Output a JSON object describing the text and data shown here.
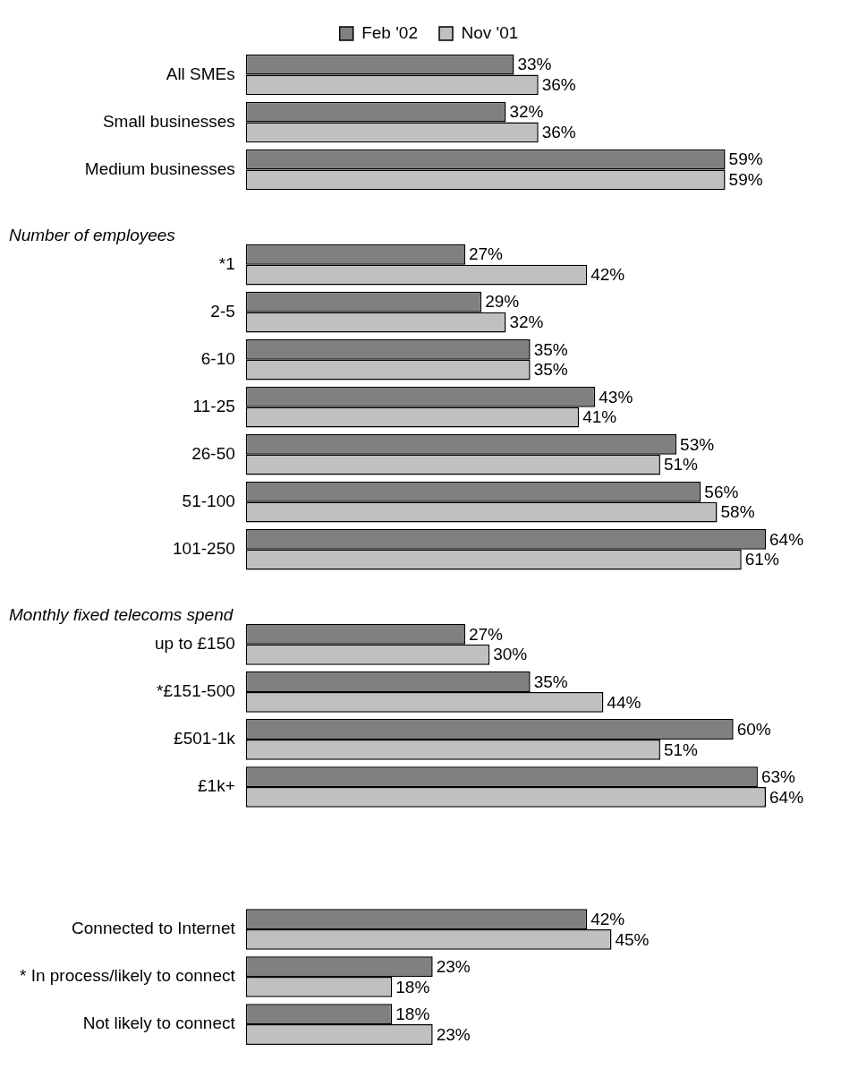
{
  "chart_data": {
    "type": "bar",
    "orientation": "horizontal",
    "legend": "top",
    "tick_labels": "y",
    "data_labels": true,
    "categories": [
      "All SMEs",
      "Small businesses",
      "Medium businesses",
      null,
      "*1",
      "2-5",
      "6-10",
      "11-25",
      "26-50",
      "51-100",
      "101-250",
      null,
      "up to £150",
      "*£151-500",
      "£501-1k",
      "£1k+",
      null,
      null,
      "Connected to Internet",
      "* In process/likely to connect",
      "Not likely to connect"
    ],
    "annotations": [
      "Number of employees",
      "Monthly fixed telecoms spend"
    ],
    "series": [
      {
        "name": "Feb '02",
        "color": "#808080",
        "values": [
          33,
          32,
          59,
          null,
          27,
          29,
          35,
          43,
          53,
          56,
          64,
          null,
          27,
          35,
          60,
          63,
          null,
          null,
          42,
          23,
          18
        ],
        "value_labels": [
          "33%",
          "32%",
          "59%",
          null,
          "27%",
          "29%",
          "35%",
          "43%",
          "53%",
          "56%",
          "64%",
          null,
          "27%",
          "35%",
          "60%",
          "63%",
          null,
          null,
          "42%",
          "23%",
          "18%"
        ]
      },
      {
        "name": "Nov '01",
        "color": "#c0c0c0",
        "values": [
          36,
          36,
          59,
          null,
          42,
          32,
          35,
          41,
          51,
          58,
          61,
          null,
          30,
          44,
          51,
          64,
          null,
          null,
          45,
          18,
          23
        ],
        "value_labels": [
          "36%",
          "36%",
          "59%",
          null,
          "42%",
          "32%",
          "35%",
          "41%",
          "51%",
          "58%",
          "61%",
          null,
          "30%",
          "44%",
          "51%",
          "64%",
          null,
          null,
          "45%",
          "18%",
          "23%"
        ]
      }
    ]
  }
}
